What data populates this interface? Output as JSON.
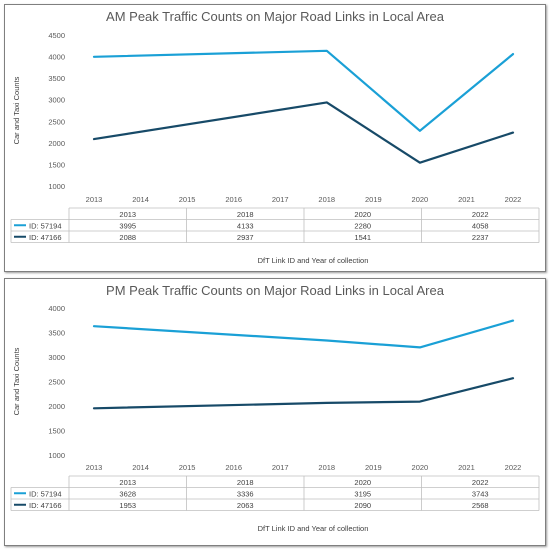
{
  "chart_data": [
    {
      "type": "line",
      "title": "AM Peak Traffic Counts on Major Road Links in Local Area",
      "ylabel": "Car and Taxi Counts",
      "xlabel": "DfT Link ID and Year of collection",
      "ylim": [
        1000,
        4500
      ],
      "yticks": [
        1000,
        1500,
        2000,
        2500,
        3000,
        3500,
        4000,
        4500
      ],
      "x": [
        2013,
        2014,
        2015,
        2016,
        2017,
        2018,
        2019,
        2020,
        2021,
        2022
      ],
      "table_years": [
        "2013",
        "2018",
        "2020",
        "2022"
      ],
      "series": [
        {
          "name": "ID: 57194",
          "color": "#1aa0d6",
          "x": [
            2013,
            2018,
            2020,
            2022
          ],
          "values": [
            3995,
            4133,
            2280,
            4058
          ],
          "labels": [
            "3995",
            "4133",
            "2280",
            "4058"
          ]
        },
        {
          "name": "ID: 47166",
          "color": "#174a68",
          "x": [
            2013,
            2018,
            2020,
            2022
          ],
          "values": [
            2088,
            2937,
            1541,
            2237
          ],
          "labels": [
            "2088",
            "2937",
            "1541",
            "2237"
          ]
        }
      ],
      "grid": false,
      "legend": "data-table"
    },
    {
      "type": "line",
      "title": "PM Peak Traffic Counts on Major Road Links in Local Area",
      "ylabel": "Car and Taxi Counts",
      "xlabel": "DfT Link ID and Year of collection",
      "ylim": [
        1000,
        4000
      ],
      "yticks": [
        1000,
        1500,
        2000,
        2500,
        3000,
        3500,
        4000
      ],
      "x": [
        2013,
        2014,
        2015,
        2016,
        2017,
        2018,
        2019,
        2020,
        2021,
        2022
      ],
      "table_years": [
        "2013",
        "2018",
        "2020",
        "2022"
      ],
      "series": [
        {
          "name": "ID: 57194",
          "color": "#1aa0d6",
          "x": [
            2013,
            2018,
            2020,
            2022
          ],
          "values": [
            3628,
            3336,
            3195,
            3743
          ],
          "labels": [
            "3628",
            "3336",
            "3195",
            "3743"
          ]
        },
        {
          "name": "ID: 47166",
          "color": "#174a68",
          "x": [
            2013,
            2018,
            2020,
            2022
          ],
          "values": [
            1953,
            2063,
            2090,
            2568
          ],
          "labels": [
            "1953",
            "2063",
            "2090",
            "2568"
          ]
        }
      ],
      "grid": false,
      "legend": "data-table"
    }
  ]
}
